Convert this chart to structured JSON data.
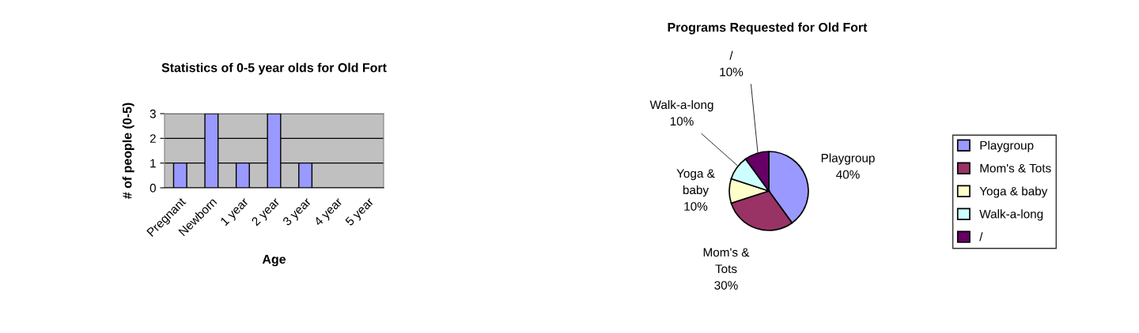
{
  "chart_data": [
    {
      "type": "bar",
      "title": "Statistics of 0-5 year olds for Old Fort",
      "xlabel": "Age",
      "ylabel": "# of people (0-5)",
      "categories": [
        "Pregnant",
        "Newborn",
        "1 year",
        "2 year",
        "3 year",
        "4 year",
        "5 year"
      ],
      "values": [
        1,
        3,
        1,
        3,
        1,
        0,
        0
      ],
      "color": "#9999ff",
      "ylim": [
        0,
        3
      ],
      "yticks": [
        0,
        1,
        2,
        3
      ],
      "grid": "y",
      "legend": false
    },
    {
      "type": "pie",
      "title": "Programs Requested for Old Fort",
      "categories": [
        "Playgroup",
        "Mom's & Tots",
        "Yoga & baby",
        "Walk-a-long",
        "/"
      ],
      "values": [
        40,
        30,
        10,
        10,
        10
      ],
      "value_labels": [
        "40%",
        "30%",
        "10%",
        "10%",
        "10%"
      ],
      "colors": [
        "#9999ff",
        "#993366",
        "#ffffcc",
        "#ccffff",
        "#660066"
      ],
      "legend": "right"
    }
  ]
}
